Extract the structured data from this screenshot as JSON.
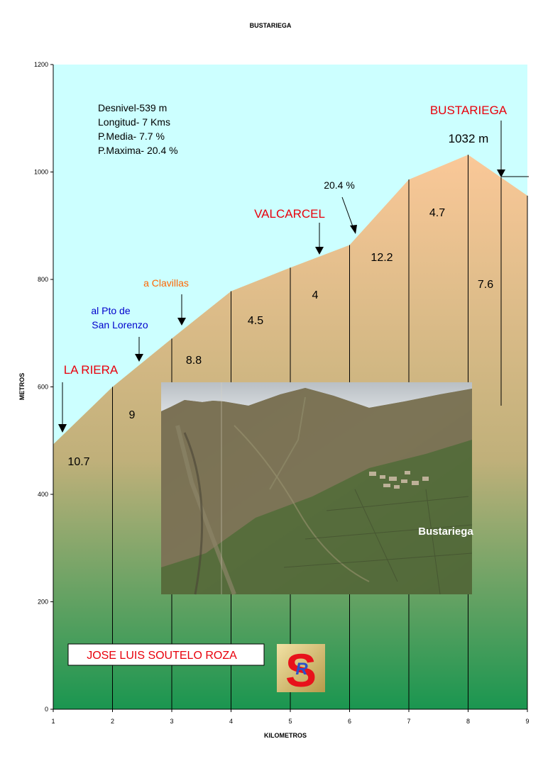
{
  "title": "BUSTARIEGA",
  "chart_data": {
    "type": "area",
    "title": "BUSTARIEGA",
    "xlabel": "KILOMETROS",
    "ylabel": "METROS",
    "xlim": [
      1,
      9
    ],
    "ylim": [
      0,
      1200
    ],
    "x_ticks": [
      "1",
      "2",
      "3",
      "4",
      "5",
      "6",
      "7",
      "8",
      "9"
    ],
    "y_ticks": [
      "0",
      "200",
      "400",
      "600",
      "800",
      "1000",
      "1200"
    ],
    "grid": false,
    "series": [
      {
        "x": [
          1,
          2,
          3,
          4,
          5,
          6,
          7,
          8,
          9
        ],
        "y": [
          493,
          600,
          690,
          778,
          822,
          864,
          986,
          1032,
          956
        ]
      }
    ],
    "segment_gradients": [
      {
        "label": "10.7",
        "color": "#000000"
      },
      {
        "label": "9",
        "color": "#000000"
      },
      {
        "label": "8.8",
        "color": "#000000"
      },
      {
        "label": "4.5",
        "color": "#000000"
      },
      {
        "label": "4",
        "color": "#000000"
      },
      {
        "label": "12.2",
        "color": "#000000"
      },
      {
        "label": "4.7",
        "color": "#000000"
      },
      {
        "label": "7.6",
        "color": "#0000ff"
      }
    ],
    "annotations": {
      "stats": [
        "Desnivel-539 m",
        "Longitud- 7 Kms",
        "P.Media- 7.7 %",
        "P.Maxima- 20.4 %"
      ],
      "summit_name": "BUSTARIEGA",
      "summit_altitude": "1032 m",
      "max_slope": "20.4 %",
      "valcarcel": "VALCARCEL",
      "clavillas": "a Clavillas",
      "san_lorenzo": [
        "al Pto de",
        "San Lorenzo"
      ],
      "la_riera": "LA RIERA"
    }
  },
  "photo_caption": "Bustariega",
  "author": "JOSE LUIS SOUTELO ROZA",
  "colors": {
    "sky": "#ccffff",
    "accent_red": "#e8000b",
    "accent_blue": "#0000ff",
    "accent_orange": "#ff6600",
    "fill_top": "#fac898",
    "fill_bottom": "#1a9650"
  },
  "logo": {
    "letters": "SR"
  }
}
